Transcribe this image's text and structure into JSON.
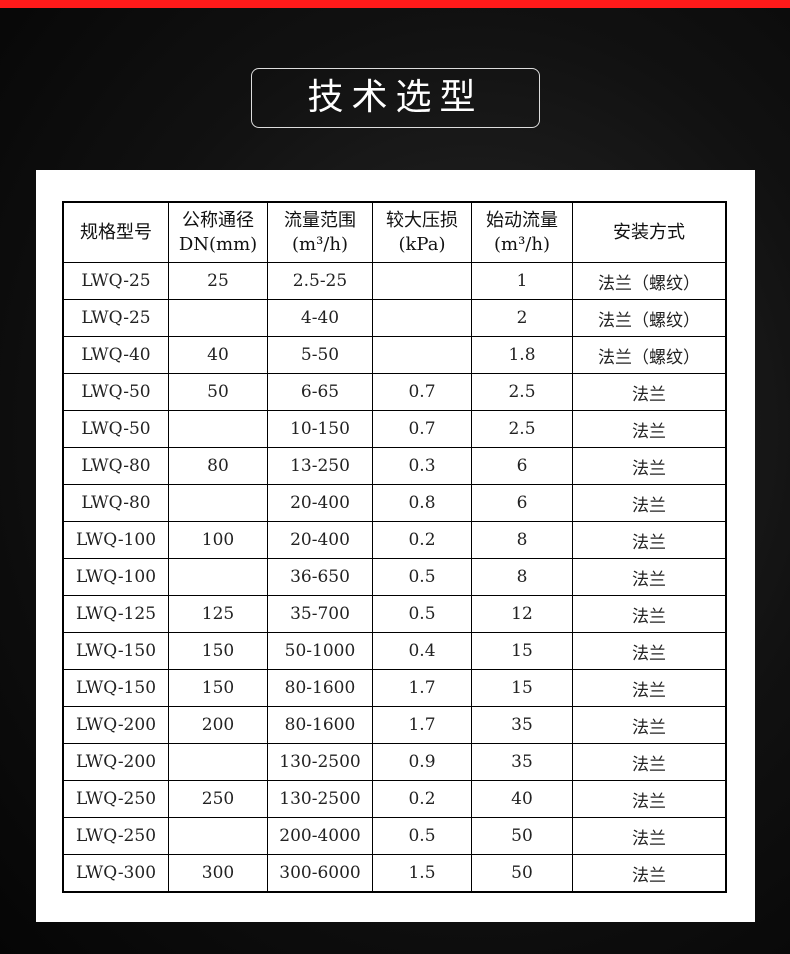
{
  "title": "技术选型",
  "colors": {
    "top_bar": "#ff1a1a",
    "background": "#111111",
    "panel": "#ffffff"
  },
  "table": {
    "headers": [
      {
        "line1": "规格型号",
        "line2": ""
      },
      {
        "line1": "公称通径",
        "line2": "DN(mm)"
      },
      {
        "line1": "流量范围",
        "line2": "(m³/h)"
      },
      {
        "line1": "较大压损",
        "line2": "(kPa)"
      },
      {
        "line1": "始动流量",
        "line2": "(m³/h)"
      },
      {
        "line1": "安装方式",
        "line2": ""
      }
    ],
    "rows": [
      [
        "LWQ-25",
        "25",
        "2.5-25",
        "",
        "1",
        "法兰（螺纹）"
      ],
      [
        "LWQ-25",
        "",
        "4-40",
        "",
        "2",
        "法兰（螺纹）"
      ],
      [
        "LWQ-40",
        "40",
        "5-50",
        "",
        "1.8",
        "法兰（螺纹）"
      ],
      [
        "LWQ-50",
        "50",
        "6-65",
        "0.7",
        "2.5",
        "法兰"
      ],
      [
        "LWQ-50",
        "",
        "10-150",
        "0.7",
        "2.5",
        "法兰"
      ],
      [
        "LWQ-80",
        "80",
        "13-250",
        "0.3",
        "6",
        "法兰"
      ],
      [
        "LWQ-80",
        "",
        "20-400",
        "0.8",
        "6",
        "法兰"
      ],
      [
        "LWQ-100",
        "100",
        "20-400",
        "0.2",
        "8",
        "法兰"
      ],
      [
        "LWQ-100",
        "",
        "36-650",
        "0.5",
        "8",
        "法兰"
      ],
      [
        "LWQ-125",
        "125",
        "35-700",
        "0.5",
        "12",
        "法兰"
      ],
      [
        "LWQ-150",
        "150",
        "50-1000",
        "0.4",
        "15",
        "法兰"
      ],
      [
        "LWQ-150",
        "150",
        "80-1600",
        "1.7",
        "15",
        "法兰"
      ],
      [
        "LWQ-200",
        "200",
        "80-1600",
        "1.7",
        "35",
        "法兰"
      ],
      [
        "LWQ-200",
        "",
        "130-2500",
        "0.9",
        "35",
        "法兰"
      ],
      [
        "LWQ-250",
        "250",
        "130-2500",
        "0.2",
        "40",
        "法兰"
      ],
      [
        "LWQ-250",
        "",
        "200-4000",
        "0.5",
        "50",
        "法兰"
      ],
      [
        "LWQ-300",
        "300",
        "300-6000",
        "1.5",
        "50",
        "法兰"
      ]
    ]
  }
}
